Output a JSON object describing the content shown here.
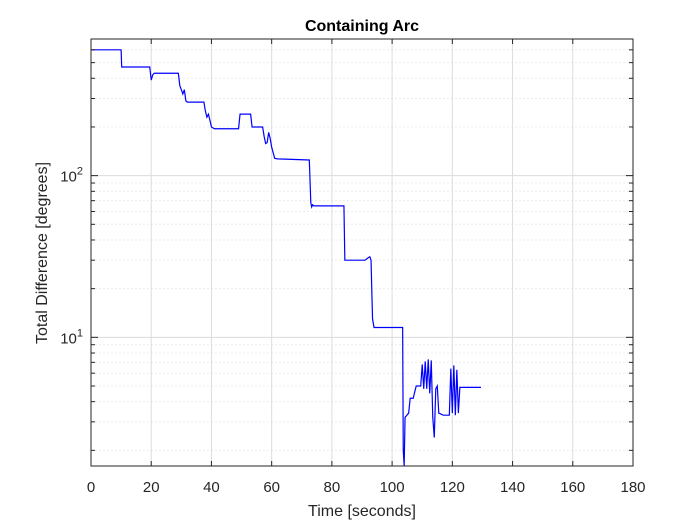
{
  "chart_data": {
    "type": "line",
    "title": "Containing Arc",
    "xlabel": "Time [seconds]",
    "ylabel": "Total Difference [degrees]",
    "xlim": [
      0,
      180
    ],
    "ylim": [
      1.6,
      700
    ],
    "y_scale": "log",
    "grid": true,
    "minor_grid": true,
    "x_ticks": [
      0,
      20,
      40,
      60,
      80,
      100,
      120,
      140,
      160,
      180
    ],
    "y_ticks": [
      10,
      100
    ],
    "y_tick_labels": [
      {
        "base": "10",
        "exp": "1"
      },
      {
        "base": "10",
        "exp": "2"
      }
    ],
    "colors": {
      "line": "#0000ff",
      "major_grid": "#dcdcdc",
      "minor_grid": "#ececec",
      "axes": "#262626"
    },
    "series": [
      {
        "points": [
          [
            0,
            600
          ],
          [
            10,
            600
          ],
          [
            10.2,
            470
          ],
          [
            19.5,
            470
          ],
          [
            20,
            390
          ],
          [
            20.5,
            420
          ],
          [
            21,
            430
          ],
          [
            29,
            430
          ],
          [
            29.5,
            360
          ],
          [
            30,
            340
          ],
          [
            30.5,
            320
          ],
          [
            31,
            340
          ],
          [
            31.5,
            290
          ],
          [
            32,
            285
          ],
          [
            37.5,
            285
          ],
          [
            38,
            250
          ],
          [
            38.5,
            230
          ],
          [
            39,
            240
          ],
          [
            39.5,
            220
          ],
          [
            40,
            200
          ],
          [
            41,
            195
          ],
          [
            49,
            195
          ],
          [
            49.5,
            240
          ],
          [
            53,
            240
          ],
          [
            53.5,
            200
          ],
          [
            57,
            200
          ],
          [
            57.5,
            175
          ],
          [
            58,
            158
          ],
          [
            58.5,
            160
          ],
          [
            59,
            185
          ],
          [
            59.5,
            170
          ],
          [
            60,
            150
          ],
          [
            61,
            128
          ],
          [
            62,
            127
          ],
          [
            72.5,
            125
          ],
          [
            73,
            68
          ],
          [
            73.3,
            64
          ],
          [
            73.6,
            66
          ],
          [
            74,
            65
          ],
          [
            84,
            65
          ],
          [
            84.3,
            30
          ],
          [
            91,
            30
          ],
          [
            92,
            31
          ],
          [
            92.6,
            31.5
          ],
          [
            93,
            30
          ],
          [
            93.5,
            13
          ],
          [
            94,
            11.5
          ],
          [
            103.5,
            11.5
          ],
          [
            103.7,
            2
          ],
          [
            104,
            1.3
          ],
          [
            104.3,
            3.2
          ],
          [
            105.5,
            3.4
          ],
          [
            106,
            4.2
          ],
          [
            107,
            4.2
          ],
          [
            108,
            5.0
          ],
          [
            109.5,
            5.0
          ],
          [
            110,
            6.8
          ],
          [
            110.5,
            4.8
          ],
          [
            111,
            7.1
          ],
          [
            111.5,
            4.8
          ],
          [
            112,
            7.3
          ],
          [
            112.5,
            4.5
          ],
          [
            113,
            7.2
          ],
          [
            113.5,
            3.2
          ],
          [
            114,
            2.4
          ],
          [
            114.5,
            4.8
          ],
          [
            115,
            5.0
          ],
          [
            115.5,
            3.4
          ],
          [
            117,
            3.3
          ],
          [
            119,
            3.3
          ],
          [
            119.5,
            6.4
          ],
          [
            120,
            3.4
          ],
          [
            120.5,
            6.7
          ],
          [
            121,
            3.3
          ],
          [
            121.5,
            6.3
          ],
          [
            122,
            3.4
          ],
          [
            122.5,
            4.9
          ],
          [
            124,
            4.9
          ],
          [
            126,
            4.9
          ],
          [
            129.5,
            4.9
          ]
        ]
      }
    ]
  }
}
